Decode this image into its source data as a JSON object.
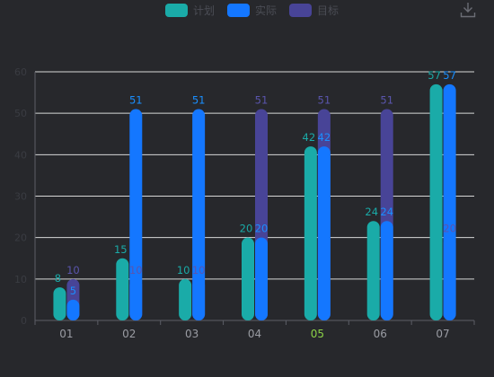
{
  "legend": [
    {
      "label": "计划",
      "color": "#1aaba8"
    },
    {
      "label": "实际",
      "color": "#1477ff"
    },
    {
      "label": "目标",
      "color": "#484497"
    }
  ],
  "toolbar": {
    "download_icon": "download-icon"
  },
  "chart_data": {
    "type": "bar",
    "categories": [
      "01",
      "02",
      "03",
      "04",
      "05",
      "06",
      "07"
    ],
    "highlighted_category": "05",
    "series": [
      {
        "name": "计划",
        "values": [
          8,
          15,
          10,
          20,
          42,
          24,
          57
        ],
        "color": "#1aaba8"
      },
      {
        "name": "实际",
        "values": [
          5,
          51,
          51,
          20,
          42,
          24,
          57
        ],
        "color": "#1477ff"
      },
      {
        "name": "目标",
        "values": [
          10,
          10,
          10,
          51,
          51,
          51,
          20
        ],
        "color": "#484497"
      }
    ],
    "yticks": [
      0,
      10,
      20,
      30,
      40,
      50,
      60
    ],
    "ylim": [
      0,
      60
    ],
    "grid": true,
    "legend_position": "top-center"
  }
}
